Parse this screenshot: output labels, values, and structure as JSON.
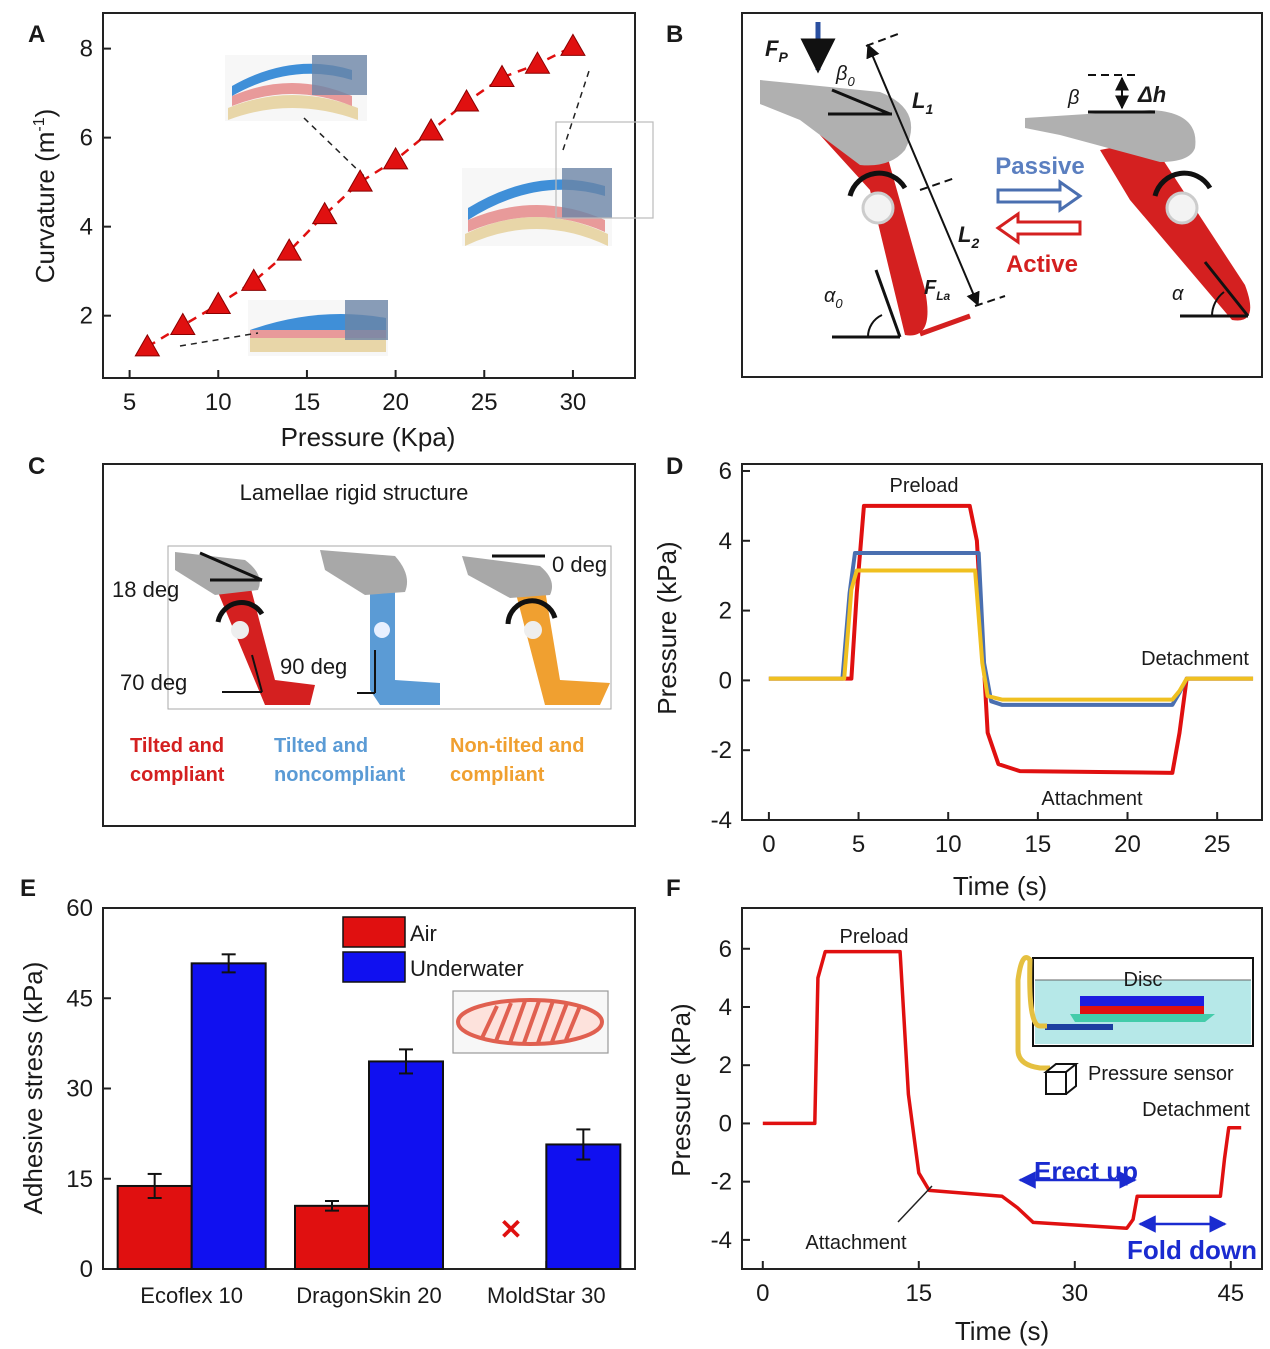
{
  "colors": {
    "red": "#e01010",
    "blue": "#1010f0",
    "steel": "#4a6fb0",
    "gold": "#f0c020",
    "orange": "#f0a030",
    "sky": "#5b9bd5",
    "gray": "#a0a0a0"
  },
  "panels": {
    "A": {
      "letter": "A",
      "chart_data": {
        "type": "scatter",
        "xlabel": "Pressure (Kpa)",
        "ylabel_main": "Curvature (m",
        "ylabel_sup": "-1",
        "ylabel_end": ")",
        "xlim": [
          3.5,
          33.5
        ],
        "ylim": [
          0.6,
          8.8
        ],
        "xticks": [
          "5",
          "10",
          "15",
          "20",
          "25",
          "30"
        ],
        "yticks": [
          "2",
          "4",
          "6",
          "8"
        ],
        "marker": "triangle",
        "x": [
          6,
          8,
          10,
          12,
          14,
          16,
          18,
          20,
          22,
          24,
          26,
          28,
          30
        ],
        "y": [
          1.3,
          1.78,
          2.25,
          2.77,
          3.45,
          4.27,
          5.0,
          5.5,
          6.15,
          6.8,
          7.35,
          7.65,
          8.05
        ]
      }
    },
    "B": {
      "letter": "B",
      "labels": {
        "fp": "F",
        "fp_sub": "P",
        "beta0": "β",
        "beta0_sub": "0",
        "l1": "L",
        "l1_sub": "1",
        "l2": "L",
        "l2_sub": "2",
        "alpha0": "α",
        "alpha0_sub": "0",
        "fla": "F",
        "fla_sub": "La",
        "beta": "β",
        "dh": "Δh",
        "alpha": "α",
        "passive": "Passive",
        "active": "Active"
      }
    },
    "C": {
      "letter": "C",
      "title": "Lamellae rigid structure",
      "angles": {
        "a18": "18 deg",
        "a70": "70 deg",
        "a90": "90 deg",
        "a0": "0 deg"
      },
      "cap1": [
        "Tilted and",
        "compliant"
      ],
      "cap2": [
        "Tilted and",
        "noncompliant"
      ],
      "cap3": [
        "Non-tilted and",
        "compliant"
      ]
    },
    "D": {
      "letter": "D",
      "chart_data": {
        "type": "line",
        "xlabel": "Time (s)",
        "ylabel": "Pressure (kPa)",
        "xlim": [
          -1.5,
          27.5
        ],
        "ylim": [
          -4,
          6.2
        ],
        "xticks": [
          "0",
          "5",
          "10",
          "15",
          "20",
          "25"
        ],
        "yticks": [
          "-4",
          "-2",
          "0",
          "2",
          "4",
          "6"
        ],
        "annotations": {
          "preload": "Preload",
          "detachment": "Detachment",
          "attachment": "Attachment"
        },
        "series": [
          {
            "color": "#e01010",
            "x": [
              0,
              4.6,
              4.9,
              5.3,
              11.2,
              11.6,
              12.2,
              12.8,
              14,
              22.5,
              22.9,
              23.3,
              27
            ],
            "y": [
              0.05,
              0.05,
              2.5,
              5.0,
              5.0,
              4.0,
              -1.5,
              -2.4,
              -2.6,
              -2.65,
              -1.5,
              0.05,
              0.05
            ]
          },
          {
            "color": "#4a6fb0",
            "x": [
              0,
              4.1,
              4.5,
              4.8,
              11.7,
              12.0,
              12.4,
              13,
              22.5,
              22.9,
              23.3,
              27
            ],
            "y": [
              0.05,
              0.05,
              2.5,
              3.65,
              3.65,
              0.5,
              -0.6,
              -0.7,
              -0.7,
              -0.35,
              0.05,
              0.05
            ]
          },
          {
            "color": "#f0c020",
            "x": [
              0,
              4.2,
              4.6,
              4.9,
              11.5,
              11.9,
              12.2,
              13,
              22.5,
              22.9,
              23.3,
              27
            ],
            "y": [
              0.05,
              0.05,
              2.6,
              3.15,
              3.15,
              0.5,
              -0.45,
              -0.55,
              -0.55,
              -0.3,
              0.05,
              0.05
            ]
          }
        ]
      }
    },
    "E": {
      "letter": "E",
      "chart_data": {
        "type": "bar",
        "ylabel": "Adhesive stress (kPa)",
        "categories": [
          "Ecoflex 10",
          "DragonSkin 20",
          "MoldStar 30"
        ],
        "ylim": [
          0,
          60
        ],
        "yticks": [
          "0",
          "15",
          "30",
          "45",
          "60"
        ],
        "series": [
          {
            "name": "Air",
            "color": "#e01010",
            "values": [
              13.8,
              10.5,
              null
            ],
            "errors": [
              2.0,
              0.8,
              null
            ]
          },
          {
            "name": "Underwater",
            "color": "#1010f0",
            "values": [
              50.8,
              34.5,
              20.7
            ],
            "errors": [
              1.5,
              2.0,
              2.5
            ]
          }
        ],
        "missing_marker": "✕"
      }
    },
    "F": {
      "letter": "F",
      "chart_data": {
        "type": "line",
        "xlabel": "Time (s)",
        "ylabel": "Pressure (kPa)",
        "xlim": [
          -2,
          48
        ],
        "ylim": [
          -5,
          7.4
        ],
        "xticks": [
          "0",
          "15",
          "30",
          "45"
        ],
        "yticks": [
          "-4",
          "-2",
          "0",
          "2",
          "4",
          "6"
        ],
        "annotations": {
          "preload": "Preload",
          "attachment": "Attachment",
          "detachment": "Detachment",
          "erect": "Erect up",
          "fold": "Fold down"
        },
        "inset": {
          "disc": "Disc",
          "sensor": "Pressure sensor"
        },
        "series": [
          {
            "color": "#e01010",
            "x": [
              0,
              5,
              5.3,
              6,
              13.2,
              14,
              15,
              16,
              23,
              24.5,
              26,
              35,
              35.6,
              36,
              42,
              44,
              44.4,
              44.8,
              46
            ],
            "y": [
              0,
              0,
              5,
              5.9,
              5.9,
              1,
              -1.7,
              -2.3,
              -2.5,
              -2.9,
              -3.4,
              -3.6,
              -3.3,
              -2.5,
              -2.5,
              -2.5,
              -1.2,
              -0.15,
              -0.15
            ]
          }
        ]
      }
    }
  }
}
